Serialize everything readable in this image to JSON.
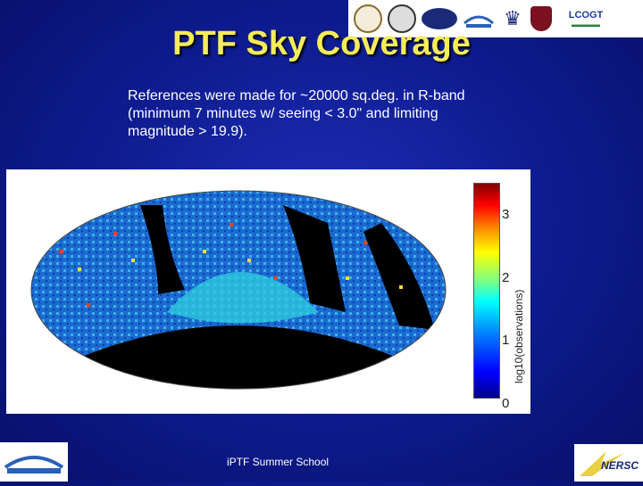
{
  "header": {
    "title": "PTF Sky Coverage"
  },
  "logos": {
    "lcogt": "LCOGT",
    "nersc": "NERSC",
    "berkeley": "BERKELEY LAB"
  },
  "body": {
    "text": "References were made for ~20000 sq.deg. in R-band (minimum 7 minutes w/ seeing < 3.0\" and limiting magnitude > 19.9)."
  },
  "colorbar": {
    "ticks": [
      "3",
      "2",
      "1",
      "0"
    ],
    "label": "log10(observations)"
  },
  "footer": {
    "text": "iPTF Summer School"
  },
  "colors": {
    "title": "#f5ec5a",
    "background": "#0d1a8c"
  }
}
